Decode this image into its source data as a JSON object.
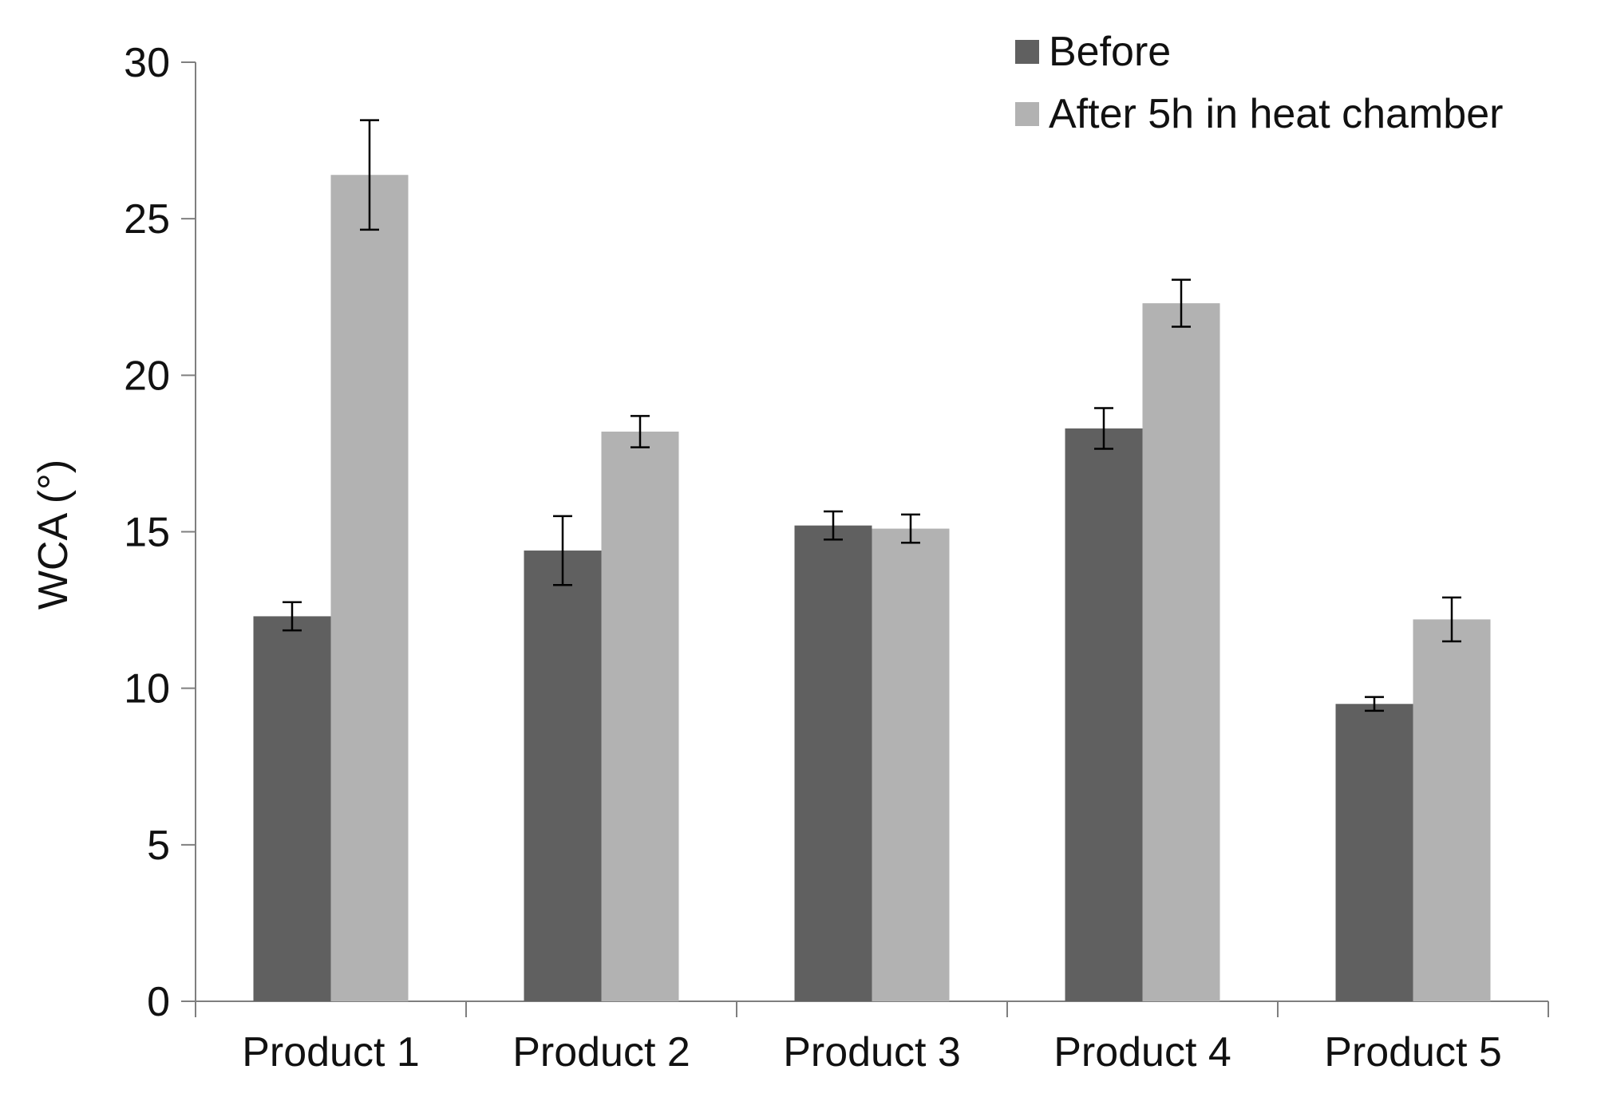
{
  "chart_data": {
    "type": "bar",
    "title": "",
    "xlabel": "",
    "ylabel": "WCA (°)",
    "ylim": [
      0,
      30
    ],
    "yticks": [
      0,
      5,
      10,
      15,
      20,
      25,
      30
    ],
    "ytick_labels": [
      "0",
      "5",
      "10",
      "15",
      "20",
      "25",
      "30"
    ],
    "grid": false,
    "legend_position": "top-right",
    "categories": [
      "Product 1",
      "Product 2",
      "Product 3",
      "Product 4",
      "Product 5"
    ],
    "series": [
      {
        "name": "Before",
        "color": "#606060",
        "values": [
          12.3,
          14.4,
          15.2,
          18.3,
          9.5
        ],
        "errors": [
          0.45,
          1.1,
          0.45,
          0.65,
          0.22
        ]
      },
      {
        "name": "After 5h in heat chamber",
        "color": "#b2b2b2",
        "values": [
          26.4,
          18.2,
          15.1,
          22.3,
          12.2
        ],
        "errors": [
          1.75,
          0.5,
          0.45,
          0.75,
          0.7
        ]
      }
    ]
  }
}
